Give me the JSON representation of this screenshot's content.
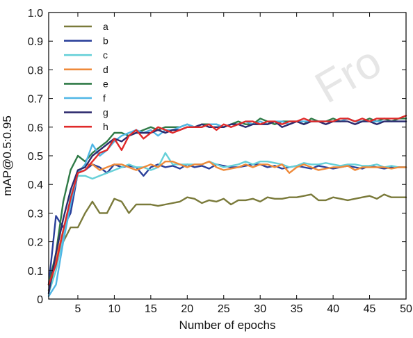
{
  "chart_data": {
    "type": "line",
    "title": "",
    "xlabel": "Number of epochs",
    "ylabel": "mAP@0.5:0.95",
    "xlim": [
      1,
      50
    ],
    "ylim": [
      0,
      1.0
    ],
    "x_ticks": [
      5,
      10,
      15,
      20,
      25,
      30,
      35,
      40,
      45,
      50
    ],
    "y_ticks": [
      0,
      0.1,
      0.2,
      0.3,
      0.4,
      0.5,
      0.6,
      0.7,
      0.8,
      0.9,
      1.0
    ],
    "y_tick_labels": [
      "0",
      "0.1",
      "0.2",
      "0.3",
      "0.4",
      "0.5",
      "0.6",
      "0.7",
      "0.8",
      "0.9",
      "1.0"
    ],
    "grid": false,
    "legend_position": "top-left",
    "x": [
      1,
      2,
      3,
      4,
      5,
      6,
      7,
      8,
      9,
      10,
      11,
      12,
      13,
      14,
      15,
      16,
      17,
      18,
      19,
      20,
      21,
      22,
      23,
      24,
      25,
      26,
      27,
      28,
      29,
      30,
      31,
      32,
      33,
      34,
      35,
      36,
      37,
      38,
      39,
      40,
      41,
      42,
      43,
      44,
      45,
      46,
      47,
      48,
      49,
      50
    ],
    "series": [
      {
        "name": "a",
        "color": "#7a7a3a",
        "values": [
          0.03,
          0.13,
          0.2,
          0.25,
          0.25,
          0.3,
          0.34,
          0.3,
          0.3,
          0.35,
          0.34,
          0.3,
          0.33,
          0.33,
          0.33,
          0.325,
          0.33,
          0.335,
          0.34,
          0.355,
          0.35,
          0.335,
          0.345,
          0.34,
          0.35,
          0.33,
          0.345,
          0.345,
          0.35,
          0.34,
          0.355,
          0.35,
          0.35,
          0.355,
          0.355,
          0.36,
          0.365,
          0.345,
          0.345,
          0.355,
          0.35,
          0.345,
          0.35,
          0.355,
          0.36,
          0.35,
          0.365,
          0.355,
          0.355,
          0.355
        ]
      },
      {
        "name": "b",
        "color": "#2a3f9a",
        "values": [
          0.05,
          0.29,
          0.25,
          0.3,
          0.44,
          0.45,
          0.47,
          0.46,
          0.44,
          0.47,
          0.46,
          0.465,
          0.46,
          0.43,
          0.46,
          0.47,
          0.46,
          0.465,
          0.455,
          0.47,
          0.46,
          0.465,
          0.455,
          0.47,
          0.465,
          0.46,
          0.46,
          0.465,
          0.47,
          0.47,
          0.46,
          0.465,
          0.455,
          0.46,
          0.465,
          0.46,
          0.455,
          0.465,
          0.46,
          0.455,
          0.46,
          0.465,
          0.46,
          0.455,
          0.465,
          0.46,
          0.455,
          0.46,
          0.46,
          0.46
        ]
      },
      {
        "name": "c",
        "color": "#66d0d8",
        "values": [
          0.02,
          0.1,
          0.22,
          0.36,
          0.43,
          0.43,
          0.42,
          0.43,
          0.44,
          0.45,
          0.46,
          0.47,
          0.46,
          0.46,
          0.45,
          0.46,
          0.51,
          0.47,
          0.47,
          0.47,
          0.47,
          0.47,
          0.48,
          0.47,
          0.46,
          0.465,
          0.47,
          0.48,
          0.47,
          0.48,
          0.48,
          0.475,
          0.47,
          0.46,
          0.465,
          0.475,
          0.47,
          0.47,
          0.475,
          0.47,
          0.465,
          0.47,
          0.47,
          0.465,
          0.465,
          0.47,
          0.46,
          0.465,
          0.46,
          0.46
        ]
      },
      {
        "name": "d",
        "color": "#ef8a3a",
        "values": [
          0.05,
          0.14,
          0.24,
          0.34,
          0.44,
          0.47,
          0.47,
          0.45,
          0.46,
          0.47,
          0.47,
          0.46,
          0.45,
          0.46,
          0.47,
          0.46,
          0.48,
          0.48,
          0.47,
          0.46,
          0.47,
          0.47,
          0.48,
          0.46,
          0.45,
          0.455,
          0.46,
          0.47,
          0.46,
          0.47,
          0.47,
          0.46,
          0.47,
          0.44,
          0.46,
          0.47,
          0.46,
          0.45,
          0.455,
          0.46,
          0.46,
          0.465,
          0.45,
          0.46,
          0.46,
          0.46,
          0.46,
          0.455,
          0.46,
          0.46
        ]
      },
      {
        "name": "e",
        "color": "#2f7a46",
        "values": [
          0.05,
          0.16,
          0.34,
          0.45,
          0.5,
          0.48,
          0.51,
          0.53,
          0.55,
          0.58,
          0.58,
          0.57,
          0.58,
          0.59,
          0.6,
          0.59,
          0.6,
          0.6,
          0.6,
          0.61,
          0.6,
          0.61,
          0.61,
          0.61,
          0.6,
          0.61,
          0.62,
          0.61,
          0.61,
          0.63,
          0.62,
          0.61,
          0.62,
          0.62,
          0.62,
          0.61,
          0.63,
          0.62,
          0.62,
          0.63,
          0.62,
          0.63,
          0.62,
          0.62,
          0.63,
          0.62,
          0.63,
          0.62,
          0.63,
          0.63
        ]
      },
      {
        "name": "f",
        "color": "#4fb6e6",
        "values": [
          0.01,
          0.05,
          0.2,
          0.33,
          0.44,
          0.47,
          0.54,
          0.5,
          0.52,
          0.55,
          0.57,
          0.58,
          0.59,
          0.58,
          0.59,
          0.57,
          0.59,
          0.59,
          0.6,
          0.61,
          0.6,
          0.6,
          0.61,
          0.61,
          0.6,
          0.61,
          0.61,
          0.62,
          0.61,
          0.62,
          0.61,
          0.62,
          0.62,
          0.61,
          0.62,
          0.62,
          0.62,
          0.62,
          0.62,
          0.62,
          0.62,
          0.63,
          0.62,
          0.62,
          0.62,
          0.62,
          0.62,
          0.62,
          0.62,
          0.62
        ]
      },
      {
        "name": "g",
        "color": "#2e2b6e",
        "values": [
          0.02,
          0.16,
          0.28,
          0.38,
          0.45,
          0.46,
          0.5,
          0.52,
          0.54,
          0.56,
          0.55,
          0.57,
          0.58,
          0.58,
          0.58,
          0.59,
          0.58,
          0.59,
          0.59,
          0.6,
          0.6,
          0.61,
          0.6,
          0.6,
          0.6,
          0.61,
          0.61,
          0.6,
          0.61,
          0.61,
          0.61,
          0.62,
          0.6,
          0.61,
          0.62,
          0.61,
          0.62,
          0.62,
          0.61,
          0.62,
          0.62,
          0.62,
          0.61,
          0.62,
          0.62,
          0.61,
          0.62,
          0.62,
          0.62,
          0.62
        ]
      },
      {
        "name": "h",
        "color": "#e02a2a",
        "values": [
          0.05,
          0.12,
          0.24,
          0.35,
          0.44,
          0.45,
          0.48,
          0.51,
          0.52,
          0.56,
          0.52,
          0.57,
          0.59,
          0.56,
          0.58,
          0.6,
          0.59,
          0.58,
          0.59,
          0.6,
          0.6,
          0.6,
          0.61,
          0.59,
          0.61,
          0.6,
          0.61,
          0.62,
          0.62,
          0.61,
          0.62,
          0.62,
          0.61,
          0.62,
          0.62,
          0.63,
          0.62,
          0.62,
          0.62,
          0.62,
          0.63,
          0.63,
          0.62,
          0.63,
          0.62,
          0.63,
          0.63,
          0.63,
          0.63,
          0.64
        ]
      }
    ]
  }
}
